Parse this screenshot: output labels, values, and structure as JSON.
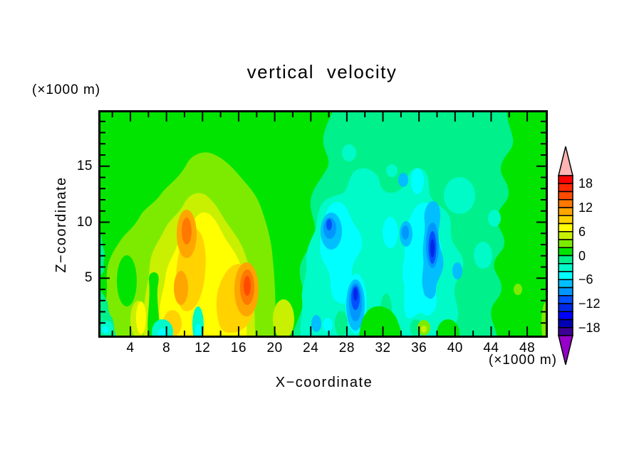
{
  "title": "vertical velocity",
  "axes": {
    "x": {
      "label": "X−coordinate",
      "unit": "(×1000 m)",
      "range": [
        0,
        50
      ],
      "major_ticks": [
        4,
        8,
        12,
        16,
        20,
        24,
        28,
        32,
        36,
        40,
        44,
        48
      ],
      "minor_ticks": [
        2,
        6,
        10,
        14,
        18,
        22,
        26,
        30,
        34,
        38,
        42,
        46,
        50
      ]
    },
    "z": {
      "label": "Z−coordinate",
      "unit": "(×1000 m)",
      "range": [
        0,
        20
      ],
      "major_ticks": [
        5,
        10,
        15
      ],
      "minor_ticks": [
        1,
        2,
        3,
        4,
        6,
        7,
        8,
        9,
        11,
        12,
        13,
        14,
        16,
        17,
        18,
        19
      ]
    }
  },
  "colorbar": {
    "labels": [
      "18",
      "12",
      "6",
      "0",
      "−6",
      "−12",
      "−18"
    ],
    "label_boundary_index": [
      1,
      4,
      7,
      10,
      13,
      16,
      19
    ],
    "segment_colors_top_to_bottom": [
      "#FF0000",
      "#FF2800",
      "#FF4B00",
      "#FF7800",
      "#FFA500",
      "#FFD200",
      "#FFFF00",
      "#C8F000",
      "#7DEB00",
      "#00E400",
      "#00F08C",
      "#00FAC8",
      "#00FFFF",
      "#00BEFF",
      "#0096FF",
      "#0050FF",
      "#0028E6",
      "#0000FF",
      "#0000B4",
      "#3C0096"
    ],
    "segment_value_top": 20,
    "segment_step": 2,
    "over_color": "#FFB4B4",
    "under_color": "#9600C8"
  },
  "chart_data": {
    "type": "filled_contour",
    "variable": "vertical velocity",
    "title": "vertical velocity",
    "xlabel": "X−coordinate (×1000 m)",
    "ylabel": "Z−coordinate (×1000 m)",
    "x_range": [
      0,
      50
    ],
    "z_range": [
      0,
      20
    ],
    "contour_interval": 2,
    "level_range": [
      -20,
      20
    ],
    "palette": {
      "l0": "#00E400",
      "l2": "#7DEB00",
      "l4": "#C8F000",
      "l6": "#FFFF00",
      "l8": "#FFD200",
      "l10": "#FFA500",
      "l12": "#FF7800",
      "l14": "#FF4B00",
      "m2": "#00F08C",
      "m4": "#00FAC8",
      "m6": "#00FFFF",
      "m8": "#00BEFF",
      "m10": "#0096FF",
      "m12": "#0050FF",
      "m14": "#0028E6"
    },
    "background_fields": [
      {
        "region": "left half (x 0-22)",
        "value_range": "0 to 2",
        "color": "#00E400"
      },
      {
        "region": "right half (x 22-46)",
        "value_range": "-2 to 0",
        "color": "#00F08C"
      },
      {
        "region": "far right (x 46-50)",
        "value_range": "0 to 2",
        "color": "#00E400"
      }
    ],
    "features": [
      {
        "kind": "updraft core",
        "x": 17,
        "z": 4.5,
        "peak_level": "14 to 16"
      },
      {
        "kind": "updraft core",
        "x": 10,
        "z": 8.5,
        "peak_level": "12 to 14"
      },
      {
        "kind": "updraft core",
        "x": 9.3,
        "z": 4,
        "peak_level": "10 to 12"
      },
      {
        "kind": "broad updraft envelope",
        "x": "5 to 19",
        "z": "0 to 13",
        "peak_level": "6 to 10"
      },
      {
        "kind": "downdraft core",
        "x": 37.4,
        "z": 7,
        "peak_level": "-12 to -14"
      },
      {
        "kind": "downdraft core",
        "x": 28.7,
        "z": 3,
        "peak_level": "-12 to -14"
      },
      {
        "kind": "downdraft core",
        "x": 25,
        "z": 9.3,
        "peak_level": "-10 to -12"
      },
      {
        "kind": "broad downdraft envelope",
        "x": "23 to 41",
        "z": "0 to 15",
        "peak_level": "-4 to -8"
      }
    ]
  }
}
